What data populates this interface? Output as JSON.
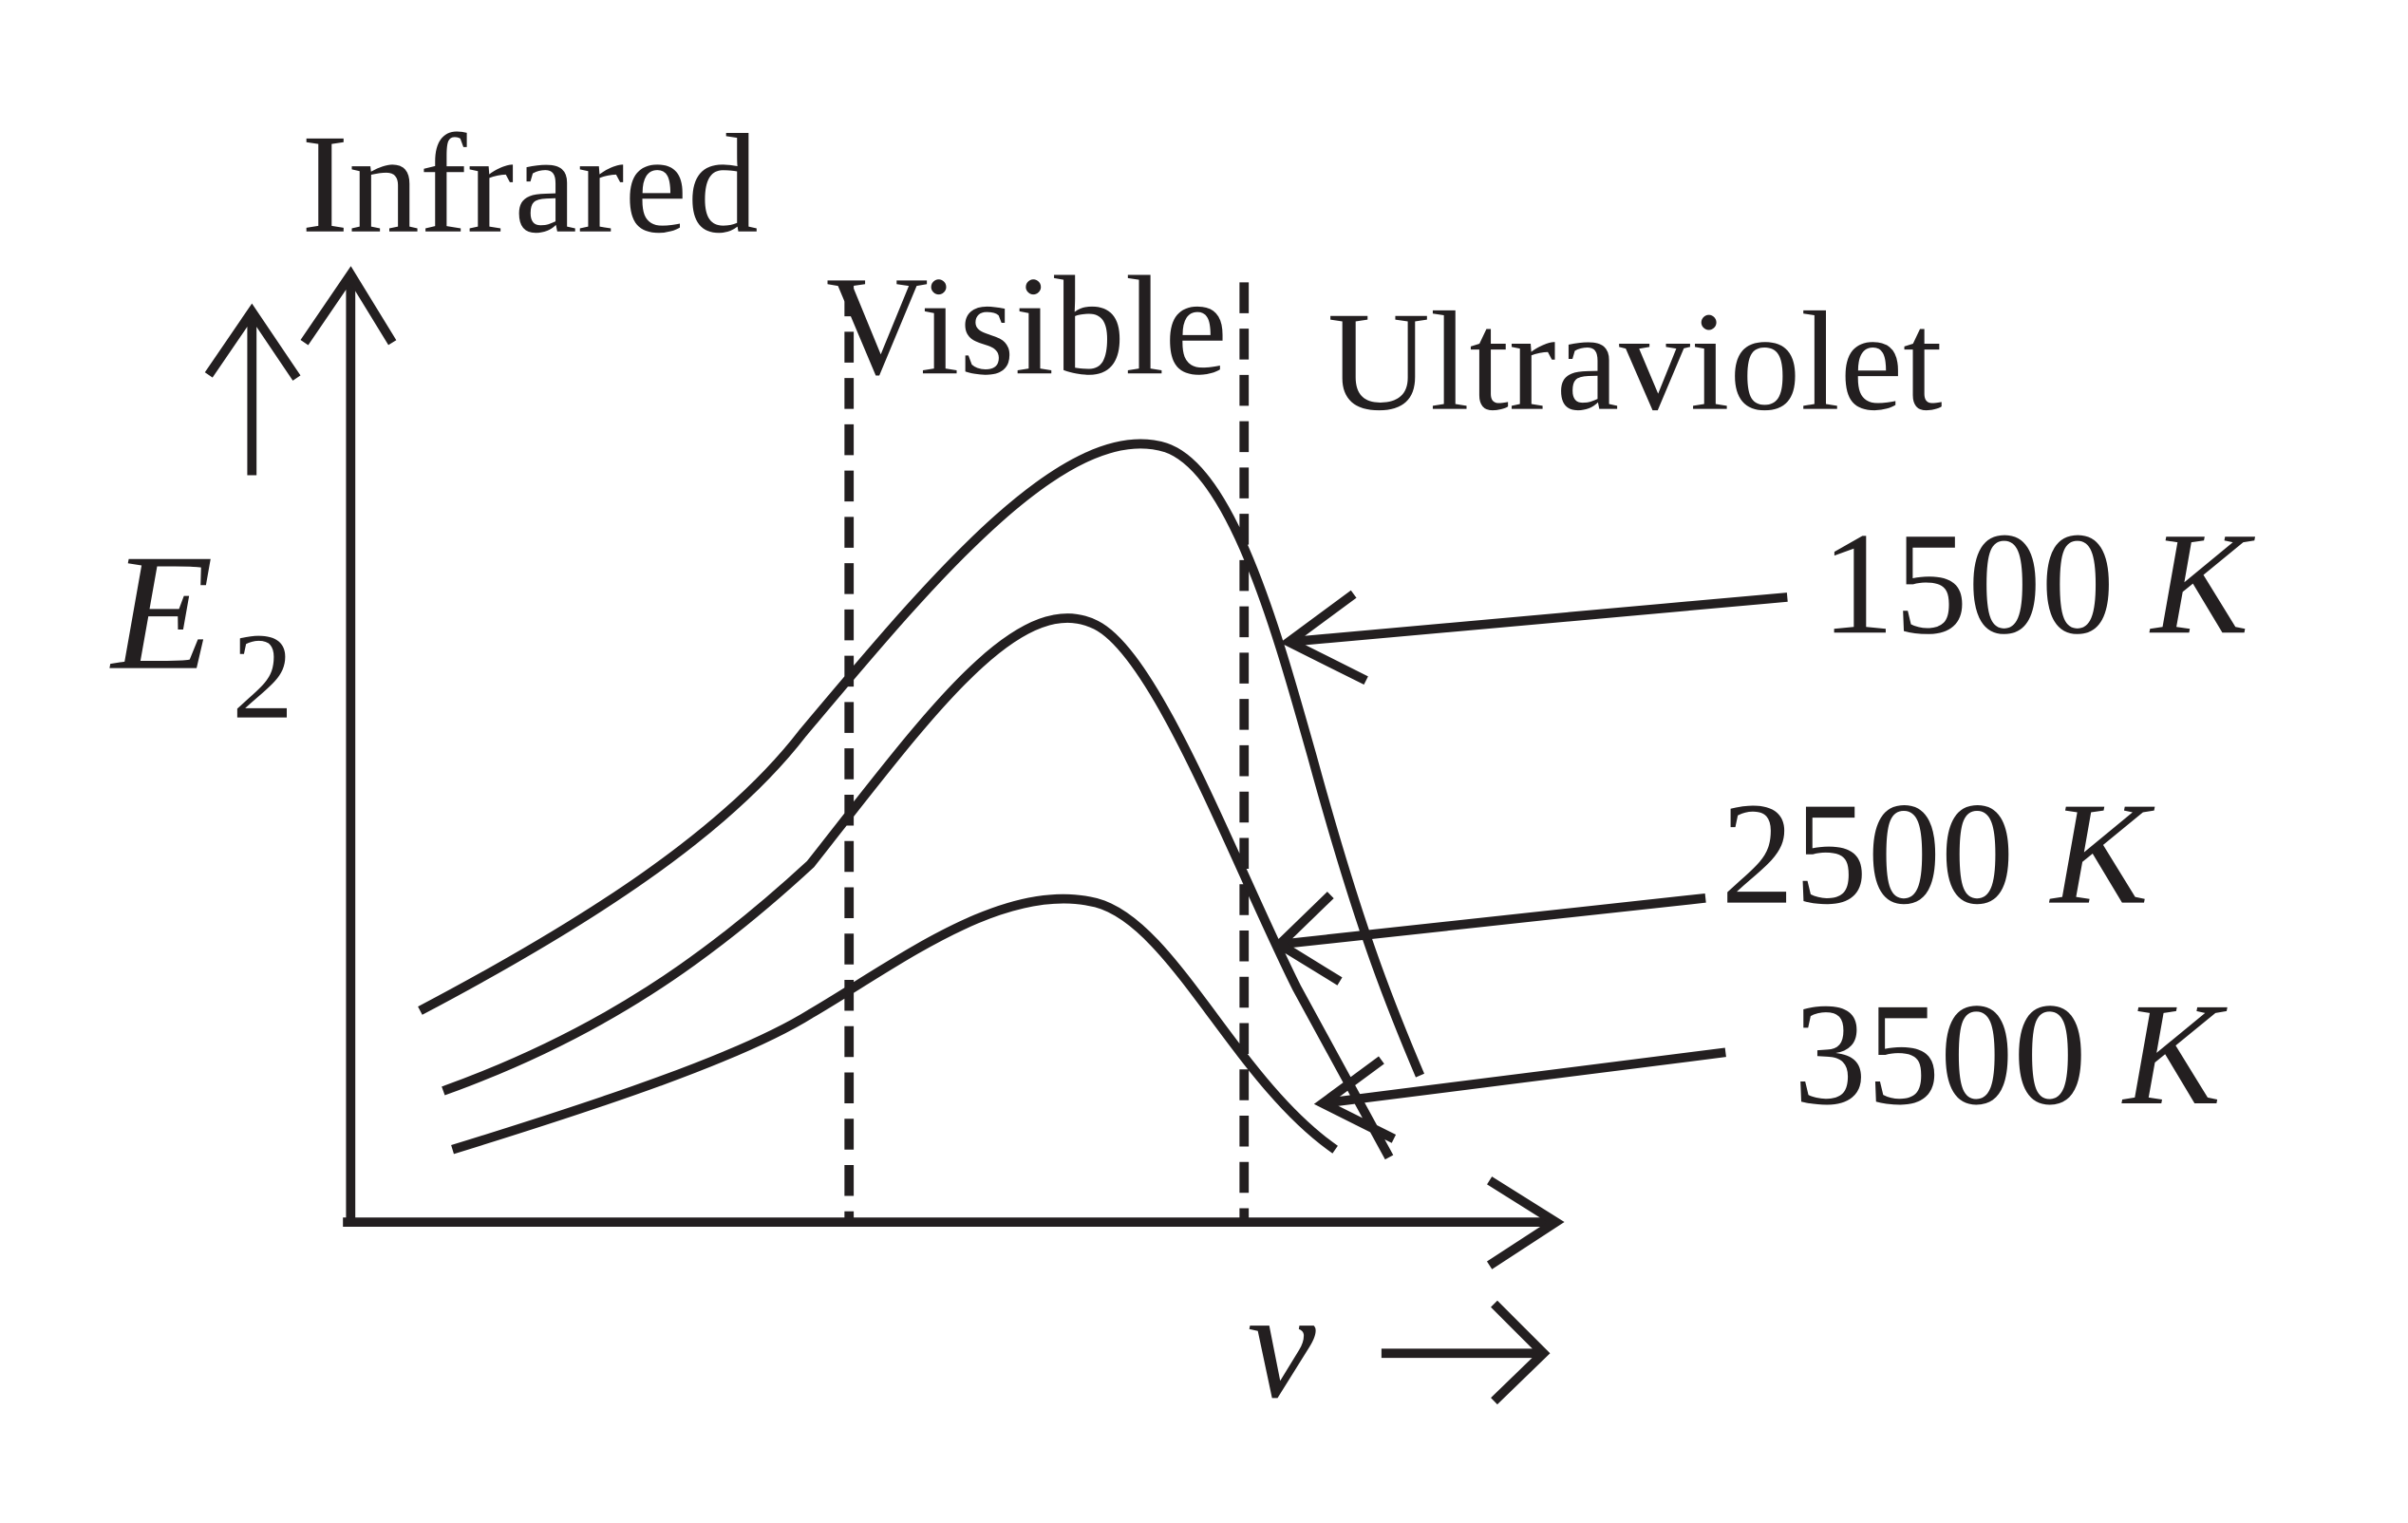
{
  "labels": {
    "infrared": "Infrared",
    "visible": "Visible",
    "ultraviolet": "Ultraviolet"
  },
  "axes": {
    "y_label": {
      "symbol": "E",
      "subscript": "2"
    },
    "x_label": "v"
  },
  "curves": [
    {
      "temperature": "1500",
      "unit": "K"
    },
    {
      "temperature": "2500",
      "unit": "K"
    },
    {
      "temperature": "3500",
      "unit": "K"
    }
  ]
}
